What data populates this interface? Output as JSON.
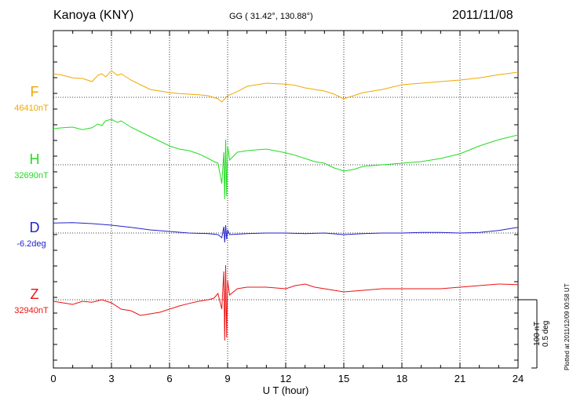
{
  "header": {
    "station": "Kanoya (KNY)",
    "coords": "GG ( 31.42°, 130.88°)",
    "date": "2011/11/08"
  },
  "plotted_note": "Plotted at 2011/12/09 00:58 UT",
  "scale": {
    "line1": "100 nT",
    "line2": "0.5 deg"
  },
  "chart_data": {
    "type": "line",
    "xlabel": "U T (hour)",
    "xlim": [
      0,
      24
    ],
    "x_ticks": [
      "0",
      "3",
      "6",
      "9",
      "12",
      "15",
      "18",
      "21",
      "24"
    ],
    "grid": true,
    "series": [
      {
        "name": "F",
        "baseline_label": "46410nT",
        "color": "#f0a800",
        "x": [
          0,
          0.5,
          1,
          1.5,
          2,
          2.3,
          2.5,
          2.7,
          3,
          3.3,
          3.5,
          4,
          4.5,
          5,
          5.5,
          6,
          6.5,
          7,
          7.5,
          8,
          8.5,
          8.7,
          9,
          9.5,
          10,
          11,
          12,
          12.5,
          13,
          13.5,
          14,
          14.5,
          15,
          15.5,
          16,
          17,
          18,
          19,
          20,
          21,
          22,
          23,
          24
        ],
        "y": [
          75,
          70,
          62,
          60,
          50,
          70,
          75,
          65,
          85,
          70,
          75,
          55,
          40,
          25,
          20,
          15,
          12,
          10,
          8,
          5,
          -5,
          -15,
          5,
          18,
          35,
          45,
          42,
          38,
          30,
          25,
          20,
          10,
          -5,
          5,
          15,
          25,
          40,
          45,
          50,
          55,
          62,
          72,
          80
        ]
      },
      {
        "name": "H",
        "baseline_label": "32690nT",
        "color": "#22dd22",
        "x": [
          0,
          0.5,
          1,
          1.5,
          2,
          2.3,
          2.5,
          2.7,
          3,
          3.3,
          3.5,
          4,
          4.5,
          5,
          5.5,
          6,
          6.5,
          7,
          7.5,
          8,
          8.3,
          8.5,
          8.7,
          8.8,
          8.85,
          8.9,
          8.95,
          9,
          9.1,
          9.5,
          10,
          11,
          12,
          12.5,
          13,
          13.5,
          14,
          14.5,
          15,
          15.5,
          16,
          17,
          18,
          19,
          20,
          21,
          22,
          23,
          24
        ],
        "y": [
          115,
          118,
          120,
          112,
          118,
          130,
          125,
          140,
          145,
          135,
          140,
          120,
          105,
          90,
          75,
          60,
          50,
          45,
          35,
          20,
          10,
          5,
          -60,
          40,
          -110,
          80,
          -100,
          60,
          15,
          40,
          45,
          50,
          38,
          30,
          20,
          10,
          5,
          -10,
          -20,
          -15,
          -5,
          0,
          5,
          10,
          20,
          35,
          60,
          80,
          95
        ]
      },
      {
        "name": "D",
        "baseline_label": "-6.2deg",
        "color": "#2222cc",
        "x": [
          0,
          1,
          2,
          3,
          4,
          5,
          6,
          7,
          8,
          8.5,
          8.7,
          8.8,
          8.85,
          8.9,
          8.95,
          9,
          9.1,
          10,
          11,
          12,
          13,
          14,
          15,
          16,
          17,
          18,
          19,
          20,
          21,
          22,
          23,
          24
        ],
        "y": [
          32,
          33,
          30,
          25,
          18,
          10,
          5,
          0,
          -2,
          -5,
          -15,
          20,
          -30,
          25,
          -20,
          10,
          -5,
          -2,
          0,
          0,
          -2,
          0,
          -5,
          -2,
          0,
          0,
          2,
          2,
          0,
          2,
          8,
          18
        ]
      },
      {
        "name": "Z",
        "baseline_label": "32940nT",
        "color": "#ee1111",
        "x": [
          0,
          0.5,
          1,
          1.5,
          2,
          2.5,
          3,
          3.5,
          4,
          4.5,
          5,
          5.5,
          6,
          6.5,
          7,
          7.5,
          8,
          8.3,
          8.5,
          8.7,
          8.8,
          8.85,
          8.9,
          8.95,
          9,
          9.1,
          9.5,
          10,
          11,
          12,
          12.5,
          13,
          13.5,
          14,
          14.5,
          15,
          16,
          17,
          18,
          19,
          20,
          21,
          22,
          23,
          24
        ],
        "y": [
          -5,
          -10,
          -15,
          -5,
          -8,
          0,
          -10,
          -30,
          -35,
          -50,
          -45,
          -40,
          -30,
          -20,
          -12,
          -5,
          0,
          5,
          20,
          -30,
          90,
          -130,
          110,
          -120,
          60,
          15,
          35,
          40,
          40,
          35,
          45,
          50,
          40,
          35,
          30,
          25,
          30,
          35,
          35,
          35,
          35,
          40,
          45,
          50,
          48
        ]
      }
    ],
    "axis_pixel_scale": null
  }
}
